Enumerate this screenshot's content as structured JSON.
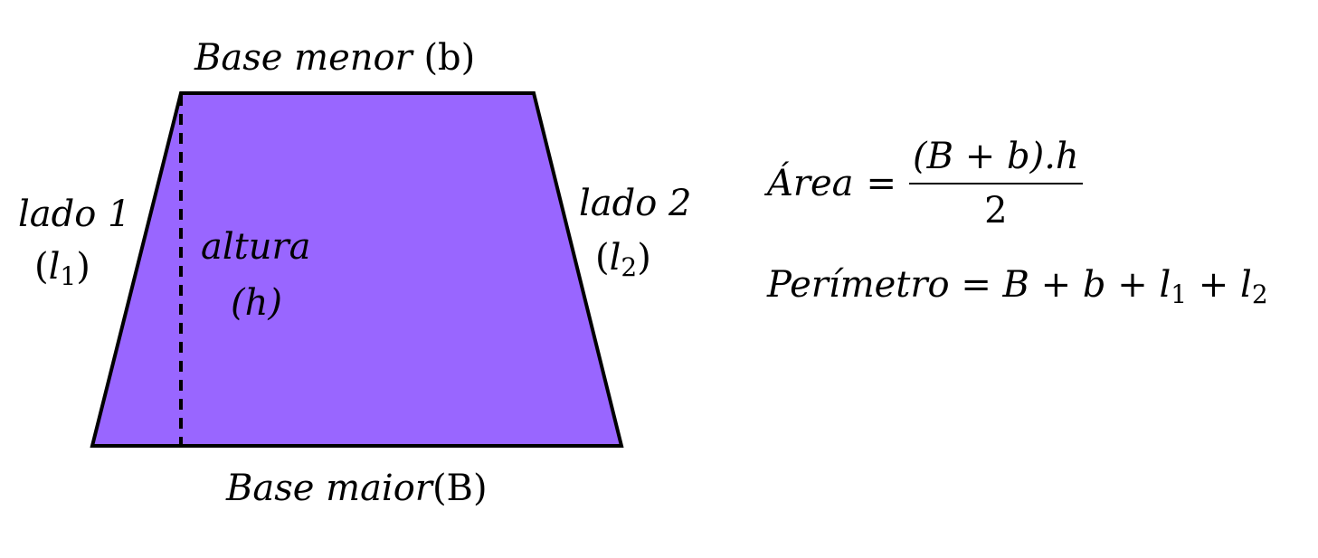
{
  "diagram": {
    "shape": "trapezoid",
    "fill_color": "#9966ff",
    "stroke_color": "#000000",
    "labels": {
      "base_menor": "Base menor",
      "base_menor_var": "(b)",
      "base_maior": "Base maior",
      "base_maior_var": "(B)",
      "lado1": "lado 1",
      "l1_var": "l",
      "l1_sub": "1",
      "lado2": "lado 2",
      "l2_var": "l",
      "l2_sub": "2",
      "altura": "altura",
      "h_var": "(h)"
    }
  },
  "formulas": {
    "area": {
      "lhs": "Área",
      "eq": "=",
      "numerator": "(B + b).h",
      "denominator": "2"
    },
    "perimetro": {
      "lhs": "Perímetro",
      "eq": "=",
      "terms": "B + b + l",
      "l1_sub": "1",
      "plus": " + l",
      "l2_sub": "2"
    }
  }
}
